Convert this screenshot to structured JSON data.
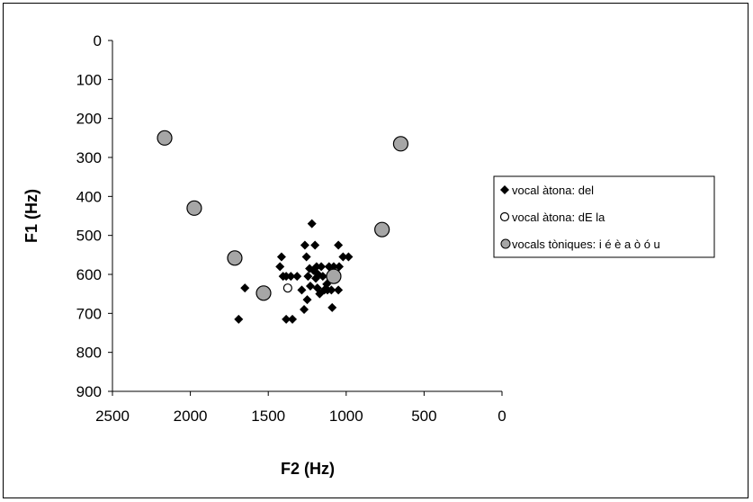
{
  "chart_data": {
    "type": "scatter",
    "title": "",
    "xlabel": "F2 (Hz)",
    "ylabel": "F1 (Hz)",
    "xlim": [
      2500,
      0
    ],
    "ylim": [
      0,
      900
    ],
    "x_reversed": true,
    "y_reversed": true,
    "x_ticks": [
      2500,
      2000,
      1500,
      1000,
      500,
      0
    ],
    "y_ticks": [
      0,
      100,
      200,
      300,
      400,
      500,
      600,
      700,
      800,
      900
    ],
    "grid": false,
    "legend_position": "right",
    "series": [
      {
        "name": "vocal àtona: del",
        "marker": "diamond",
        "color": "#000000",
        "points": [
          [
            1415,
            555
          ],
          [
            1425,
            580
          ],
          [
            1650,
            635
          ],
          [
            1690,
            715
          ],
          [
            1385,
            715
          ],
          [
            1345,
            715
          ],
          [
            1355,
            605
          ],
          [
            1315,
            605
          ],
          [
            1285,
            640
          ],
          [
            1270,
            690
          ],
          [
            1250,
            665
          ],
          [
            1255,
            555
          ],
          [
            1265,
            525
          ],
          [
            1245,
            605
          ],
          [
            1230,
            630
          ],
          [
            1220,
            470
          ],
          [
            1200,
            525
          ],
          [
            1190,
            580
          ],
          [
            1210,
            590
          ],
          [
            1195,
            610
          ],
          [
            1185,
            635
          ],
          [
            1170,
            650
          ],
          [
            1160,
            580
          ],
          [
            1150,
            605
          ],
          [
            1140,
            640
          ],
          [
            1125,
            625
          ],
          [
            1110,
            580
          ],
          [
            1100,
            600
          ],
          [
            1095,
            640
          ],
          [
            1090,
            685
          ],
          [
            1080,
            580
          ],
          [
            1060,
            600
          ],
          [
            1050,
            640
          ],
          [
            1045,
            580
          ],
          [
            1050,
            525
          ],
          [
            1020,
            555
          ],
          [
            985,
            555
          ],
          [
            1385,
            605
          ],
          [
            1405,
            605
          ],
          [
            1235,
            585
          ],
          [
            1180,
            600
          ],
          [
            1120,
            640
          ]
        ]
      },
      {
        "name": "vocal àtona: dE la",
        "marker": "circle-open",
        "color": "#000000",
        "points": [
          [
            1375,
            635
          ]
        ]
      },
      {
        "name": "vocals tòniques: i é è a ò ó u",
        "marker": "circle-gray",
        "color": "#a6a6a6",
        "points": [
          [
            2165,
            250
          ],
          [
            1975,
            430
          ],
          [
            1715,
            558
          ],
          [
            1530,
            648
          ],
          [
            1080,
            605
          ],
          [
            770,
            485
          ],
          [
            650,
            265
          ]
        ]
      }
    ]
  }
}
